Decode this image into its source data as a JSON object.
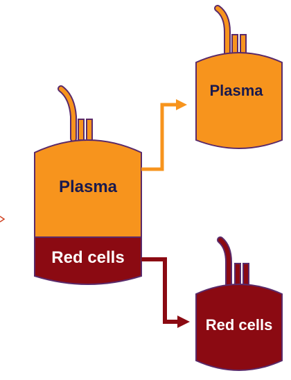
{
  "labels": {
    "main_plasma": "Plasma",
    "main_red_cells": "Red cells",
    "top_plasma": "Plasma",
    "bottom_red_cells": "Red cells"
  },
  "colors": {
    "plasma": "#f7941d",
    "red_cells": "#8b0a12",
    "outline": "#5a2a6a",
    "plasma_text": "#1a1a4e",
    "red_cells_text": "#ffffff"
  }
}
